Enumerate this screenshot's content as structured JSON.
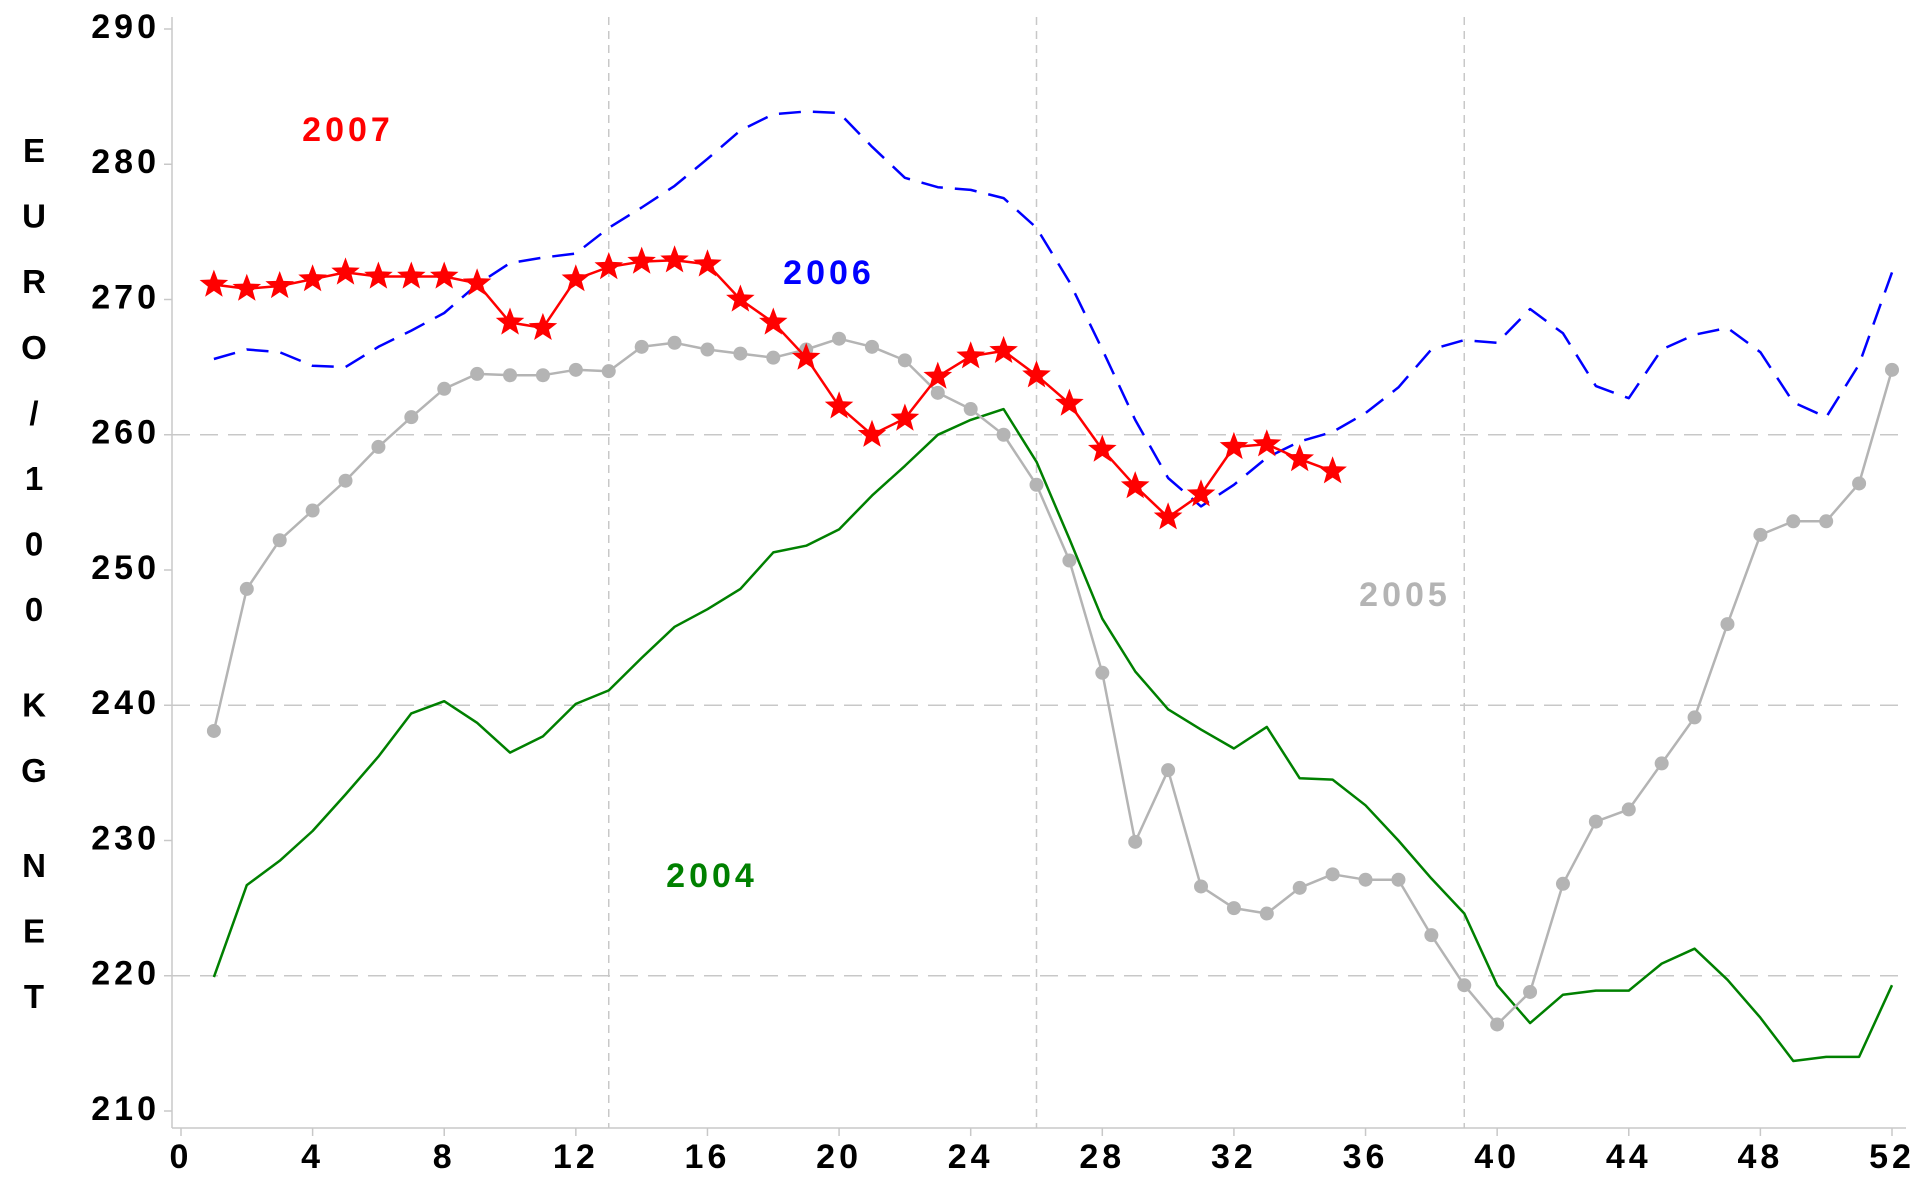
{
  "chart_data": {
    "type": "line",
    "y_label": "EURO/100 KG NET",
    "x": [
      1,
      2,
      3,
      4,
      5,
      6,
      7,
      8,
      9,
      10,
      11,
      12,
      13,
      14,
      15,
      16,
      17,
      18,
      19,
      20,
      21,
      22,
      23,
      24,
      25,
      26,
      27,
      28,
      29,
      30,
      31,
      32,
      33,
      34,
      35,
      36,
      37,
      38,
      39,
      40,
      41,
      42,
      43,
      44,
      45,
      46,
      47,
      48,
      49,
      50,
      51,
      52
    ],
    "xlim": [
      0,
      52
    ],
    "xticks": [
      0,
      4,
      8,
      12,
      16,
      20,
      24,
      28,
      32,
      36,
      40,
      44,
      48,
      52
    ],
    "ylim": [
      210,
      290
    ],
    "yticks": [
      210,
      220,
      230,
      240,
      250,
      260,
      270,
      280,
      290
    ],
    "xgrid": [
      13,
      26,
      39
    ],
    "ygrid": [
      220,
      240,
      260
    ],
    "series": [
      {
        "name": "2007",
        "color": "#ff0000",
        "marker": "star",
        "style": "solid",
        "values": [
          271.1,
          270.8,
          271.0,
          271.5,
          272.0,
          271.7,
          271.7,
          271.7,
          271.2,
          268.3,
          267.9,
          271.5,
          272.4,
          272.8,
          272.9,
          272.6,
          270.0,
          268.3,
          265.7,
          262.1,
          260.0,
          261.2,
          264.3,
          265.8,
          266.2,
          264.4,
          262.3,
          258.9,
          256.2,
          253.9,
          255.6,
          259.1,
          259.3,
          258.2,
          257.3,
          null,
          null,
          null,
          null,
          null,
          null,
          null,
          null,
          null,
          null,
          null,
          null,
          null,
          null,
          null,
          null,
          null
        ]
      },
      {
        "name": "2006",
        "color": "#0000ff",
        "style": "dashed",
        "values": [
          265.6,
          266.3,
          266.1,
          265.1,
          265.0,
          266.5,
          267.7,
          269.0,
          271.1,
          272.7,
          273.1,
          273.4,
          275.3,
          276.8,
          278.4,
          280.4,
          282.5,
          283.7,
          283.9,
          283.8,
          281.3,
          279.0,
          278.3,
          278.1,
          277.5,
          275.3,
          271.3,
          266.3,
          261.1,
          256.8,
          254.7,
          256.3,
          258.3,
          259.5,
          260.2,
          261.6,
          263.5,
          266.3,
          267.0,
          266.8,
          269.3,
          267.5,
          263.6,
          262.7,
          266.3,
          267.4,
          267.9,
          266.1,
          262.4,
          261.3,
          265.2,
          272.0
        ]
      },
      {
        "name": "2005",
        "color": "#b4b4b4",
        "marker": "circle",
        "style": "solid",
        "values": [
          238.1,
          248.6,
          252.2,
          254.4,
          256.6,
          259.1,
          261.3,
          263.4,
          264.5,
          264.4,
          264.4,
          264.8,
          264.7,
          266.5,
          266.8,
          266.3,
          266.0,
          265.7,
          266.3,
          267.1,
          266.5,
          265.5,
          263.1,
          261.9,
          260.0,
          256.3,
          250.7,
          242.4,
          229.9,
          235.2,
          226.6,
          225.0,
          224.6,
          226.5,
          227.5,
          227.1,
          227.1,
          223.0,
          219.3,
          216.4,
          218.8,
          226.8,
          231.4,
          232.3,
          235.7,
          239.1,
          246.0,
          252.6,
          253.6,
          253.6,
          256.4,
          264.8
        ]
      },
      {
        "name": "2004",
        "color": "#008000",
        "style": "solid",
        "values": [
          219.9,
          226.7,
          228.5,
          230.7,
          233.4,
          236.2,
          239.4,
          240.3,
          238.7,
          236.5,
          237.7,
          240.1,
          241.1,
          243.5,
          245.8,
          247.1,
          248.6,
          251.3,
          251.8,
          253.0,
          255.5,
          257.7,
          260.0,
          261.1,
          261.9,
          258.0,
          252.3,
          246.4,
          242.5,
          239.7,
          238.2,
          236.8,
          238.4,
          234.6,
          234.5,
          232.6,
          230.0,
          227.2,
          224.6,
          219.3,
          216.5,
          218.6,
          218.9,
          218.9,
          220.9,
          222.0,
          219.7,
          216.9,
          213.7,
          214.0,
          214.0,
          219.3
        ]
      }
    ]
  }
}
